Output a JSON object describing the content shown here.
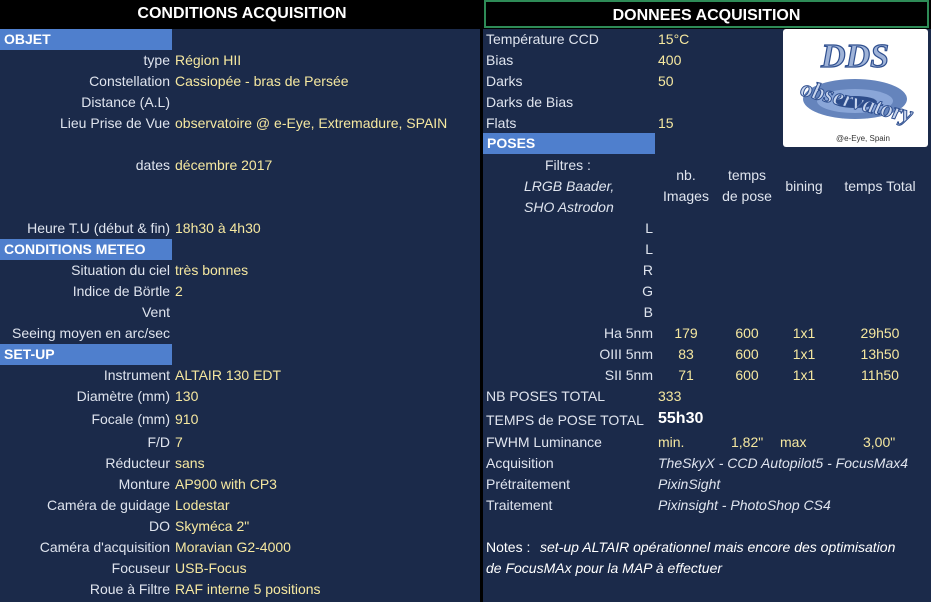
{
  "headers": {
    "left": "CONDITIONS ACQUISITION",
    "right": "DONNEES ACQUISITION"
  },
  "left": {
    "section_objet": "OBJET",
    "type_label": "type",
    "type_value": "Région HII",
    "constellation_label": "Constellation",
    "constellation_value": "Cassiopée - bras de Persée",
    "distance_label": "Distance (A.L)",
    "lieu_label": "Lieu Prise de Vue",
    "lieu_value": "observatoire @ e-Eye, Extremadure, SPAIN",
    "dates_label": "dates",
    "dates_value": "décembre 2017",
    "heure_label": "Heure T.U (début & fin)",
    "heure_value": "18h30 à 4h30",
    "section_meteo": "CONDITIONS METEO",
    "ciel_label": "Situation du ciel",
    "ciel_value": "très bonnes",
    "bortle_label": "Indice de Börtle",
    "bortle_value": "2",
    "vent_label": "Vent",
    "seeing_label": "Seeing moyen en arc/sec",
    "section_setup": "SET-UP",
    "instrument_label": "Instrument",
    "instrument_value": "ALTAIR 130 EDT",
    "diametre_label": "Diamètre (mm)",
    "diametre_value": "130",
    "focale_label": "Focale (mm)",
    "focale_value": "910",
    "fd_label": "F/D",
    "fd_value": "7",
    "reducteur_label": "Réducteur",
    "reducteur_value": "sans",
    "monture_label": "Monture",
    "monture_value": "AP900 with CP3",
    "guidage_label": "Caméra de guidage",
    "guidage_value": "Lodestar",
    "do_label": "DO",
    "do_value": "Skyméca 2\"",
    "camera_label": "Caméra d'acquisition",
    "camera_value": "Moravian G2-4000",
    "focuseur_label": "Focuseur",
    "focuseur_value": "USB-Focus",
    "roue_label": "Roue à Filtre",
    "roue_value": "RAF interne 5 positions"
  },
  "right": {
    "temp_label": "Température CCD",
    "temp_value": "15°C",
    "bias_label": "Bias",
    "bias_value": "400",
    "darks_label": "Darks",
    "darks_value": "50",
    "darks_bias_label": "Darks de Bias",
    "flats_label": "Flats",
    "flats_value": "15",
    "section_poses": "POSES",
    "filtres_label": "Filtres :",
    "filtres_lrgb": "LRGB Baader,",
    "filtres_sho": "SHO Astrodon",
    "col_nb_1": "nb.",
    "col_nb_2": "Images",
    "col_temps_1": "temps",
    "col_temps_2": "de pose",
    "col_bining": "bining",
    "col_total": "temps Total",
    "filters": [
      {
        "name": "L",
        "nb": "",
        "pose": "",
        "bining": "",
        "total": ""
      },
      {
        "name": "L",
        "nb": "",
        "pose": "",
        "bining": "",
        "total": ""
      },
      {
        "name": "R",
        "nb": "",
        "pose": "",
        "bining": "",
        "total": ""
      },
      {
        "name": "G",
        "nb": "",
        "pose": "",
        "bining": "",
        "total": ""
      },
      {
        "name": "B",
        "nb": "",
        "pose": "",
        "bining": "",
        "total": ""
      },
      {
        "name": "Ha 5nm",
        "nb": "179",
        "pose": "600",
        "bining": "1x1",
        "total": "29h50"
      },
      {
        "name": "OIII 5nm",
        "nb": "83",
        "pose": "600",
        "bining": "1x1",
        "total": "13h50"
      },
      {
        "name": "SII 5nm",
        "nb": "71",
        "pose": "600",
        "bining": "1x1",
        "total": "11h50"
      }
    ],
    "nb_poses_label": "NB POSES TOTAL",
    "nb_poses_value": "333",
    "temps_pose_label": "TEMPS de POSE TOTAL",
    "temps_pose_value": "55h30",
    "fwhm_label": "FWHM Luminance",
    "fwhm_min_label": "min.",
    "fwhm_min_value": "1,82\"",
    "fwhm_max_label": "max",
    "fwhm_max_value": "3,00\"",
    "acquisition_label": "Acquisition",
    "acquisition_value": "TheSkyX - CCD Autopilot5 - FocusMax4",
    "pretraitement_label": "Prétraitement",
    "pretraitement_value": "PixinSight",
    "traitement_label": "Traitement",
    "traitement_value": "Pixinsight - PhotoShop CS4",
    "notes_label": "Notes :",
    "notes_line1": "set-up ALTAIR opérationnel mais encore des optimisation",
    "notes_line2": "de FocusMAx pour la MAP à effectuer"
  },
  "logo": {
    "line1": "DDS",
    "line2": "observatory",
    "line3": "@e-Eye, Spain"
  }
}
